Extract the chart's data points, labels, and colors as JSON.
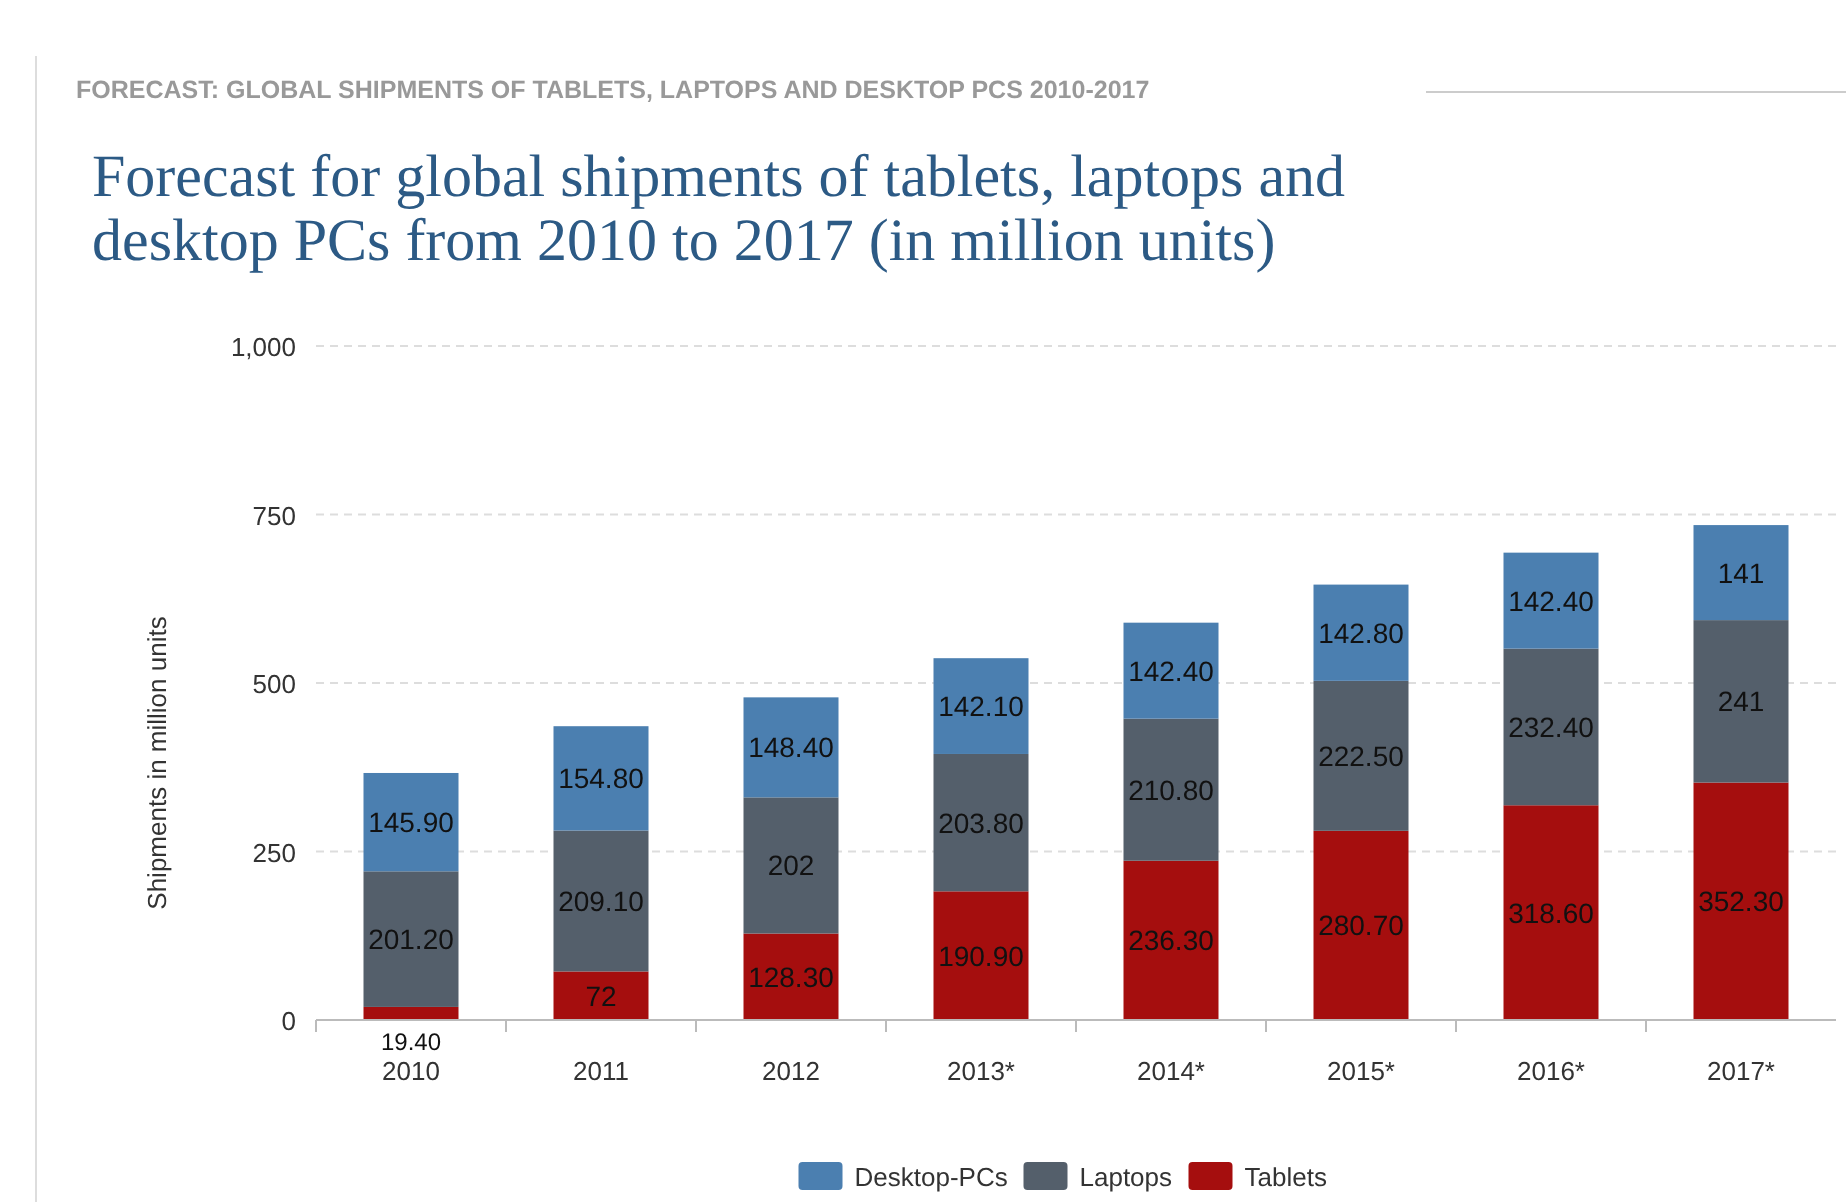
{
  "chart_data": {
    "type": "bar",
    "stacked": true,
    "subtitle": "FORECAST: GLOBAL SHIPMENTS OF TABLETS, LAPTOPS AND DESKTOP PCS 2010-2017",
    "title": "Forecast for global shipments of tablets, laptops and desktop PCs from 2010 to 2017 (in million units)",
    "ylabel": "Shipments in million units",
    "categories": [
      "2010",
      "2011",
      "2012",
      "2013*",
      "2014*",
      "2015*",
      "2016*",
      "2017*"
    ],
    "series": [
      {
        "name": "Tablets",
        "color": "#a50e0e",
        "values": [
          19.4,
          72,
          128.3,
          190.9,
          236.3,
          280.7,
          318.6,
          352.3
        ],
        "value_labels": [
          "19.40",
          "72",
          "128.30",
          "190.90",
          "236.30",
          "280.70",
          "318.60",
          "352.30"
        ]
      },
      {
        "name": "Laptops",
        "color": "#545f6b",
        "values": [
          201.2,
          209.1,
          202,
          203.8,
          210.8,
          222.5,
          232.4,
          241
        ],
        "value_labels": [
          "201.20",
          "209.10",
          "202",
          "203.80",
          "210.80",
          "222.50",
          "232.40",
          "241"
        ]
      },
      {
        "name": "Desktop-PCs",
        "color": "#4b7fb0",
        "values": [
          145.9,
          154.8,
          148.4,
          142.1,
          142.4,
          142.8,
          142.4,
          141
        ],
        "value_labels": [
          "145.90",
          "154.80",
          "148.40",
          "142.10",
          "142.40",
          "142.80",
          "142.40",
          "141"
        ]
      }
    ],
    "ylim": [
      0,
      1000
    ],
    "yticks": [
      0,
      {
        "value": 250,
        "label": "250"
      },
      {
        "value": 500,
        "label": "500"
      },
      {
        "value": 750,
        "label": "750"
      },
      {
        "value": 1000,
        "label": "1,000"
      }
    ],
    "grid": "y",
    "legend": "bottom"
  }
}
